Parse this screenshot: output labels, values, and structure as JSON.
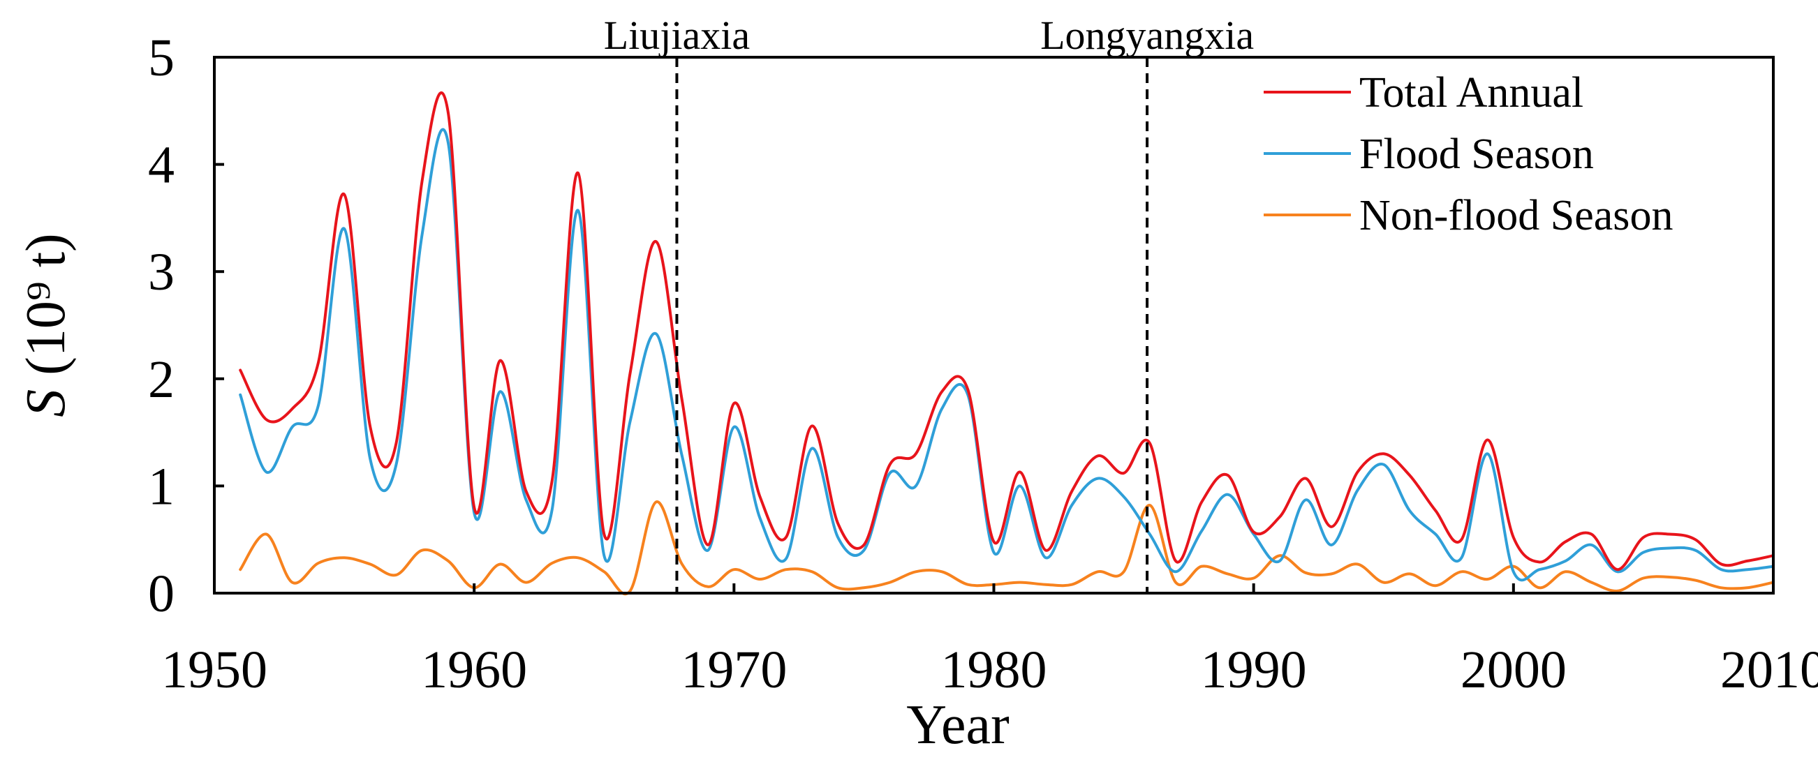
{
  "chart_data": {
    "type": "line",
    "title": "",
    "xlabel": "Year",
    "ylabel": "S (10⁹ t)",
    "ylabel_main": "S",
    "ylabel_unit": " (10⁹ t)",
    "xlim": [
      1950,
      2010
    ],
    "ylim": [
      0,
      5
    ],
    "xticks": [
      1950,
      1960,
      1970,
      1980,
      1990,
      2000,
      2010
    ],
    "yticks": [
      0,
      1,
      2,
      3,
      4,
      5
    ],
    "grid": false,
    "legend_position": "top-right",
    "annotations": [
      {
        "label": "Liujiaxia",
        "x": 1967.8
      },
      {
        "label": "Longyangxia",
        "x": 1985.9
      }
    ],
    "x": [
      1951,
      1952,
      1953,
      1954,
      1955,
      1956,
      1957,
      1958,
      1959,
      1960,
      1961,
      1962,
      1963,
      1964,
      1965,
      1966,
      1967,
      1968,
      1969,
      1970,
      1971,
      1972,
      1973,
      1974,
      1975,
      1976,
      1977,
      1978,
      1979,
      1980,
      1981,
      1982,
      1983,
      1984,
      1985,
      1986,
      1987,
      1988,
      1989,
      1990,
      1991,
      1992,
      1993,
      1994,
      1995,
      1996,
      1997,
      1998,
      1999,
      2000,
      2001,
      2002,
      2003,
      2004,
      2005,
      2006,
      2007,
      2008,
      2009,
      2010
    ],
    "series": [
      {
        "name": "Total Annual",
        "color": "#e8141b",
        "values": [
          2.08,
          1.62,
          1.72,
          2.15,
          3.72,
          1.55,
          1.4,
          3.85,
          4.48,
          0.8,
          2.17,
          0.95,
          1.05,
          3.92,
          0.55,
          2.05,
          3.28,
          1.8,
          0.45,
          1.77,
          0.9,
          0.52,
          1.56,
          0.65,
          0.45,
          1.2,
          1.3,
          1.88,
          1.9,
          0.48,
          1.13,
          0.4,
          0.95,
          1.28,
          1.12,
          1.4,
          0.3,
          0.85,
          1.1,
          0.57,
          0.71,
          1.07,
          0.62,
          1.13,
          1.3,
          1.1,
          0.77,
          0.5,
          1.43,
          0.52,
          0.29,
          0.48,
          0.55,
          0.22,
          0.52,
          0.55,
          0.5,
          0.27,
          0.3,
          0.35
        ]
      },
      {
        "name": "Flood Season",
        "color": "#2f9fd8",
        "values": [
          1.85,
          1.13,
          1.55,
          1.75,
          3.4,
          1.25,
          1.2,
          3.35,
          4.2,
          0.75,
          1.88,
          0.87,
          0.78,
          3.57,
          0.35,
          1.6,
          2.42,
          1.28,
          0.4,
          1.55,
          0.7,
          0.32,
          1.35,
          0.52,
          0.4,
          1.12,
          1.0,
          1.72,
          1.85,
          0.38,
          1.0,
          0.33,
          0.82,
          1.07,
          0.9,
          0.55,
          0.2,
          0.58,
          0.92,
          0.55,
          0.3,
          0.87,
          0.45,
          0.96,
          1.2,
          0.77,
          0.55,
          0.33,
          1.3,
          0.2,
          0.22,
          0.3,
          0.45,
          0.2,
          0.38,
          0.42,
          0.4,
          0.22,
          0.22,
          0.25
        ]
      },
      {
        "name": "Non-flood Season",
        "color": "#f7821e",
        "values": [
          0.22,
          0.55,
          0.1,
          0.28,
          0.33,
          0.27,
          0.17,
          0.4,
          0.3,
          0.05,
          0.27,
          0.1,
          0.28,
          0.33,
          0.2,
          0.02,
          0.85,
          0.27,
          0.06,
          0.22,
          0.13,
          0.22,
          0.2,
          0.05,
          0.05,
          0.1,
          0.2,
          0.2,
          0.08,
          0.08,
          0.1,
          0.08,
          0.08,
          0.2,
          0.2,
          0.82,
          0.1,
          0.25,
          0.18,
          0.14,
          0.35,
          0.19,
          0.18,
          0.27,
          0.1,
          0.18,
          0.07,
          0.2,
          0.13,
          0.25,
          0.05,
          0.2,
          0.1,
          0.02,
          0.14,
          0.15,
          0.12,
          0.05,
          0.05,
          0.1
        ]
      }
    ]
  }
}
